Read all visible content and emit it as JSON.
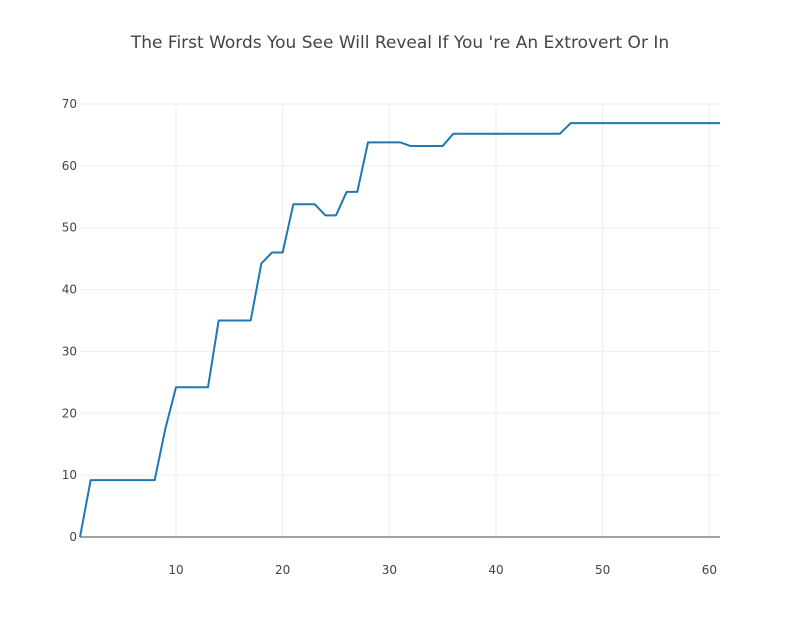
{
  "chart_data": {
    "type": "line",
    "title": "The First Words You See Will Reveal If You 're An Extrovert Or In",
    "xlabel": "",
    "ylabel": "",
    "xlim": [
      1,
      61
    ],
    "ylim": [
      0,
      70
    ],
    "grid": true,
    "x_ticks": [
      10,
      20,
      30,
      40,
      50,
      60
    ],
    "y_ticks": [
      0,
      10,
      20,
      30,
      40,
      50,
      60,
      70
    ],
    "colors": {
      "series": "#1f77b4",
      "grid": "#eeeeee",
      "zero_line": "#444444",
      "text": "#444444"
    },
    "series": [
      {
        "x": [
          1,
          2,
          3,
          4,
          5,
          6,
          7,
          8,
          9,
          10,
          11,
          12,
          13,
          14,
          15,
          16,
          17,
          18,
          19,
          20,
          21,
          22,
          23,
          24,
          25,
          26,
          27,
          28,
          29,
          30,
          31,
          32,
          33,
          34,
          35,
          36,
          37,
          38,
          39,
          40,
          41,
          42,
          43,
          44,
          45,
          46,
          47,
          48,
          49,
          50,
          51,
          52,
          53,
          54,
          55,
          56,
          57,
          58,
          59,
          60,
          61
        ],
        "values": [
          0,
          9.2,
          9.2,
          9.2,
          9.2,
          9.2,
          9.2,
          9.2,
          17.5,
          24.2,
          24.2,
          24.2,
          24.2,
          35,
          35,
          35,
          35,
          44.2,
          46,
          46,
          53.8,
          53.8,
          53.8,
          52,
          52,
          55.8,
          55.8,
          63.8,
          63.8,
          63.8,
          63.8,
          63.2,
          63.2,
          63.2,
          63.2,
          65.2,
          65.2,
          65.2,
          65.2,
          65.2,
          65.2,
          65.2,
          65.2,
          65.2,
          65.2,
          65.2,
          66.9,
          66.9,
          66.9,
          66.9,
          66.9,
          66.9,
          66.9,
          66.9,
          66.9,
          66.9,
          66.9,
          66.9,
          66.9,
          66.9,
          66.9
        ]
      }
    ]
  }
}
